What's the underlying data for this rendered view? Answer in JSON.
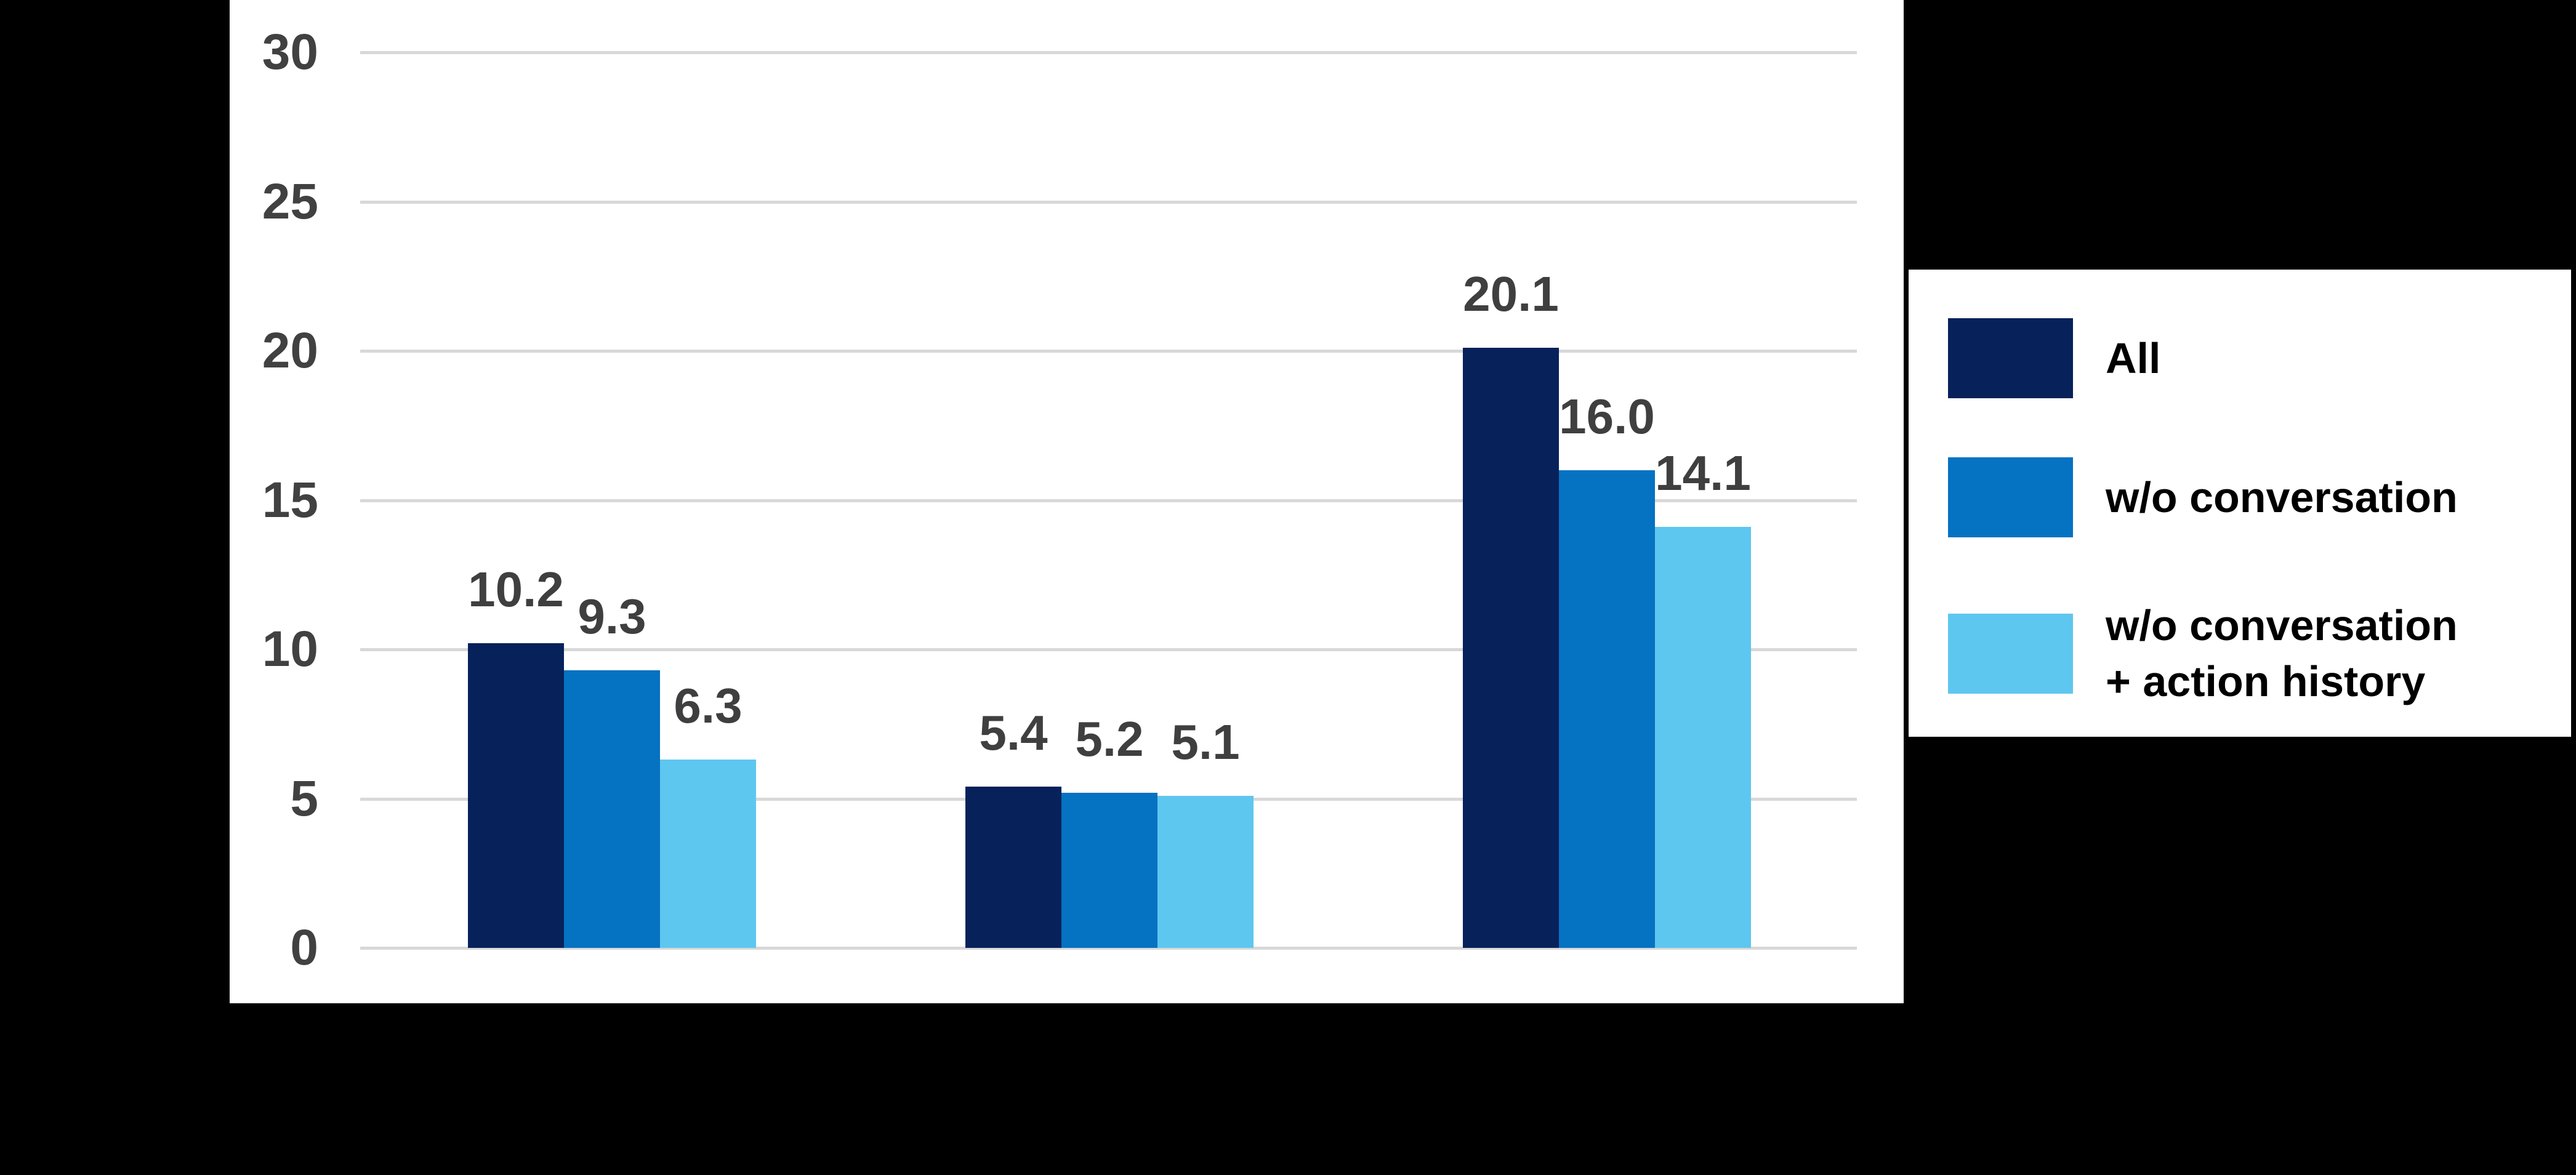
{
  "canvas": {
    "background": "#000000",
    "panel_background": "#ffffff"
  },
  "chart_data": {
    "type": "bar",
    "title": "",
    "categories": [
      "",
      "",
      ""
    ],
    "series": [
      {
        "name": "All",
        "color": "#07215A",
        "values": [
          10.2,
          5.4,
          20.1
        ]
      },
      {
        "name": "w/o conversation",
        "color": "#0572C2",
        "values": [
          9.3,
          5.2,
          16.0
        ]
      },
      {
        "name": "w/o conversation + action history",
        "color": "#5EC7EF",
        "values": [
          6.3,
          5.1,
          14.1
        ]
      }
    ],
    "ylim": [
      0,
      30
    ],
    "yticks": [
      0,
      5,
      10,
      15,
      20,
      25,
      30
    ],
    "grid": true,
    "value_labels_shown": true,
    "legend_position": "right"
  },
  "axis": {
    "tick_label_color": "#414141",
    "gridline_color": "#D8D8D8"
  },
  "value_label_style": {
    "color": "#3F3F3F"
  },
  "legend": {
    "border_color": "#000000",
    "background": "#ffffff",
    "rows": [
      {
        "lines": [
          "All"
        ]
      },
      {
        "lines": [
          "w/o conversation"
        ]
      },
      {
        "lines": [
          "w/o conversation",
          "+ action history"
        ]
      }
    ]
  }
}
